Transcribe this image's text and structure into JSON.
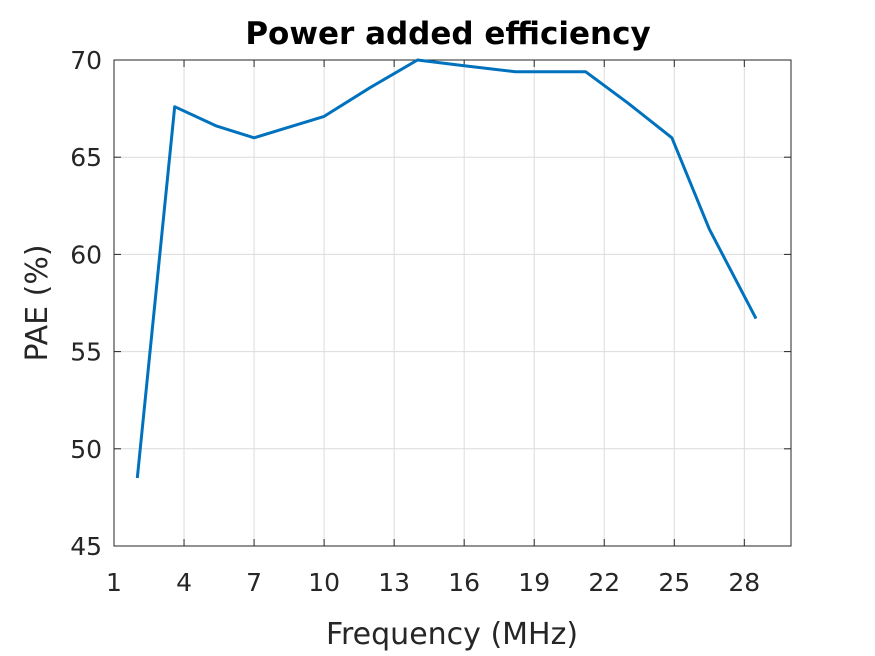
{
  "chart_data": {
    "type": "line",
    "title": "Power added efficiency",
    "xlabel": "Frequency (MHz)",
    "ylabel": "PAE (%)",
    "xlim": [
      1,
      30
    ],
    "ylim": [
      45,
      70
    ],
    "xticks": [
      "1",
      "4",
      "7",
      "10",
      "13",
      "16",
      "19",
      "22",
      "25",
      "28"
    ],
    "yticks": [
      "45",
      "50",
      "55",
      "60",
      "65",
      "70"
    ],
    "grid": true,
    "series": [
      {
        "color": "#0072BD",
        "x": [
          2,
          3.6,
          5.4,
          7,
          10,
          12,
          14,
          16,
          18.2,
          19.5,
          21.2,
          23,
          24.9,
          26.5,
          28.5
        ],
        "y": [
          48.5,
          67.6,
          66.6,
          66.0,
          67.1,
          68.6,
          70.0,
          69.7,
          69.4,
          69.4,
          69.4,
          67.8,
          66.0,
          61.3,
          56.7
        ]
      }
    ]
  }
}
